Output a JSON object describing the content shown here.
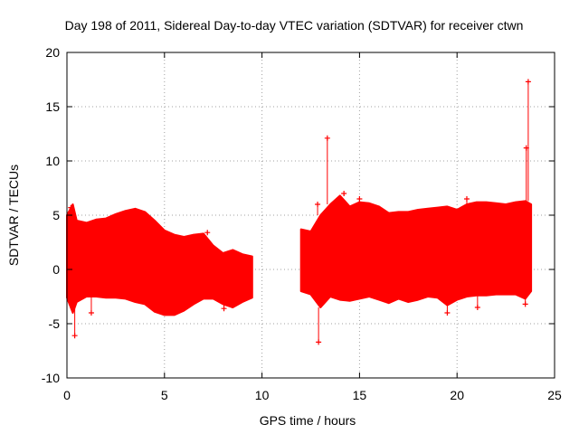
{
  "chart_data": {
    "type": "scatter",
    "title": "Day 198 of 2011, Sidereal Day-to-day VTEC variation (SDTVAR) for receiver ctwn",
    "xlabel": "GPS time / hours",
    "ylabel": "SDTVAR / TECUs",
    "xlim": [
      0,
      25
    ],
    "ylim": [
      -10,
      20
    ],
    "xticks": [
      0,
      5,
      10,
      15,
      20,
      25
    ],
    "yticks": [
      -10,
      -5,
      0,
      5,
      10,
      15,
      20
    ],
    "grid": true,
    "marker": "+",
    "series": [
      {
        "name": "SDTVAR",
        "color": "#ff0000",
        "envelope_upper": [
          [
            0.0,
            5.0
          ],
          [
            0.3,
            6.0
          ],
          [
            0.5,
            4.5
          ],
          [
            1.0,
            4.3
          ],
          [
            1.5,
            4.6
          ],
          [
            2.0,
            4.7
          ],
          [
            2.5,
            5.1
          ],
          [
            3.0,
            5.4
          ],
          [
            3.5,
            5.6
          ],
          [
            4.0,
            5.3
          ],
          [
            4.5,
            4.5
          ],
          [
            5.0,
            3.6
          ],
          [
            5.5,
            3.2
          ],
          [
            6.0,
            3.0
          ],
          [
            6.5,
            3.2
          ],
          [
            7.0,
            3.3
          ],
          [
            7.5,
            2.2
          ],
          [
            8.0,
            1.5
          ],
          [
            8.5,
            1.8
          ],
          [
            9.0,
            1.4
          ],
          [
            9.5,
            1.2
          ],
          [
            12.0,
            3.7
          ],
          [
            12.5,
            3.5
          ],
          [
            13.0,
            5.0
          ],
          [
            13.5,
            6.0
          ],
          [
            14.0,
            6.8
          ],
          [
            14.5,
            5.8
          ],
          [
            15.0,
            6.2
          ],
          [
            15.5,
            6.1
          ],
          [
            16.0,
            5.8
          ],
          [
            16.5,
            5.2
          ],
          [
            17.0,
            5.3
          ],
          [
            17.5,
            5.3
          ],
          [
            18.0,
            5.5
          ],
          [
            18.5,
            5.6
          ],
          [
            19.0,
            5.7
          ],
          [
            19.5,
            5.8
          ],
          [
            20.0,
            5.5
          ],
          [
            20.5,
            6.0
          ],
          [
            21.0,
            6.2
          ],
          [
            21.5,
            6.2
          ],
          [
            22.0,
            6.1
          ],
          [
            22.5,
            6.0
          ],
          [
            23.0,
            6.2
          ],
          [
            23.5,
            6.3
          ],
          [
            23.8,
            6.0
          ]
        ],
        "envelope_lower": [
          [
            0.0,
            -2.6
          ],
          [
            0.3,
            -4.0
          ],
          [
            0.5,
            -3.0
          ],
          [
            1.0,
            -2.5
          ],
          [
            1.5,
            -2.5
          ],
          [
            2.0,
            -2.6
          ],
          [
            2.5,
            -2.6
          ],
          [
            3.0,
            -2.7
          ],
          [
            3.5,
            -3.0
          ],
          [
            4.0,
            -3.2
          ],
          [
            4.5,
            -3.9
          ],
          [
            5.0,
            -4.2
          ],
          [
            5.5,
            -4.2
          ],
          [
            6.0,
            -3.8
          ],
          [
            6.5,
            -3.2
          ],
          [
            7.0,
            -2.7
          ],
          [
            7.5,
            -2.7
          ],
          [
            8.0,
            -3.2
          ],
          [
            8.5,
            -3.5
          ],
          [
            9.0,
            -3.0
          ],
          [
            9.5,
            -2.6
          ],
          [
            12.0,
            -2.0
          ],
          [
            12.5,
            -2.3
          ],
          [
            13.0,
            -3.5
          ],
          [
            13.5,
            -2.5
          ],
          [
            14.0,
            -2.8
          ],
          [
            14.5,
            -2.9
          ],
          [
            15.0,
            -2.7
          ],
          [
            15.5,
            -2.5
          ],
          [
            16.0,
            -2.8
          ],
          [
            16.5,
            -3.1
          ],
          [
            17.0,
            -2.7
          ],
          [
            17.5,
            -3.0
          ],
          [
            18.0,
            -2.8
          ],
          [
            18.5,
            -2.5
          ],
          [
            19.0,
            -2.6
          ],
          [
            19.5,
            -3.3
          ],
          [
            20.0,
            -2.8
          ],
          [
            20.5,
            -2.5
          ],
          [
            21.0,
            -2.4
          ],
          [
            21.5,
            -2.4
          ],
          [
            22.0,
            -2.3
          ],
          [
            22.5,
            -2.3
          ],
          [
            23.0,
            -2.3
          ],
          [
            23.5,
            -2.7
          ],
          [
            23.8,
            -2.0
          ]
        ],
        "outliers": [
          [
            0.4,
            -6.1
          ],
          [
            0.2,
            5.7
          ],
          [
            1.25,
            -4.0
          ],
          [
            7.2,
            3.4
          ],
          [
            8.05,
            -3.6
          ],
          [
            12.9,
            -6.7
          ],
          [
            13.35,
            12.1
          ],
          [
            12.85,
            6.0
          ],
          [
            14.2,
            7.0
          ],
          [
            15.0,
            6.5
          ],
          [
            19.5,
            -4.0
          ],
          [
            20.5,
            6.5
          ],
          [
            21.05,
            -3.5
          ],
          [
            23.55,
            11.2
          ],
          [
            23.65,
            17.3
          ],
          [
            23.5,
            -3.2
          ]
        ]
      }
    ]
  }
}
